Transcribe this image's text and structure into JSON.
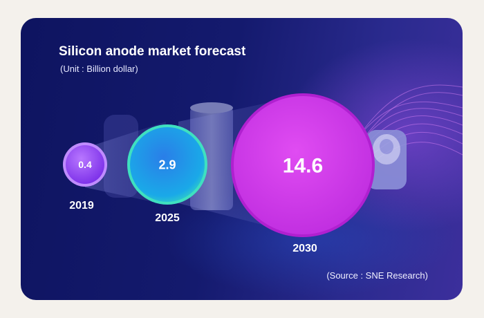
{
  "chart_data": {
    "type": "bubble",
    "title": "Silicon anode market forecast",
    "subtitle": "(Unit : Billion dollar)",
    "source": "(Source : SNE Research)",
    "categories": [
      "2019",
      "2025",
      "2030"
    ],
    "values": [
      0.4,
      2.9,
      14.6
    ],
    "value_labels": [
      "0.4",
      "2.9",
      "14.6"
    ]
  },
  "colors": {
    "background": "#f4f1ec",
    "card_dark": "#0e1460",
    "bubble_2019": "#9c4dff",
    "bubble_2025": "#1aa9e8",
    "bubble_2030": "#d43ff0"
  },
  "icons": [
    "battery-icon",
    "battery-cell-icon",
    "light-wave-decoration"
  ]
}
